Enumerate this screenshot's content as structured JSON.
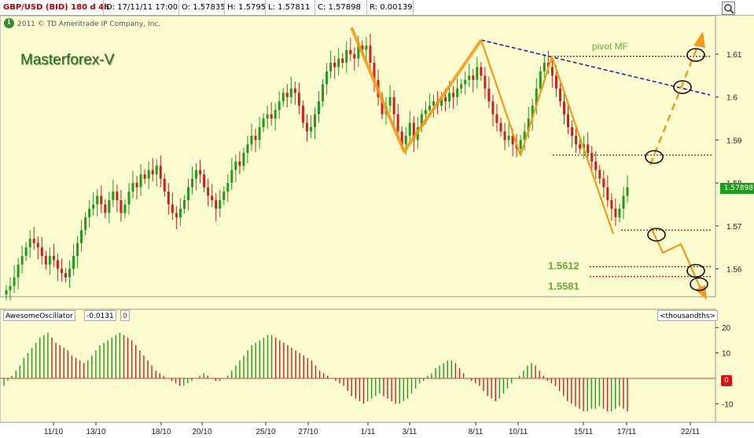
{
  "header": {
    "symbol": "GBP/USD (BID) 180 d 4h",
    "date": "D: 17/11/11 17:00",
    "open": "O: 1.57835",
    "high": "H: 1.5795",
    "low": "L: 1.57811",
    "close": "C: 1.57898",
    "range": "R: 0.00139"
  },
  "copyright": "2011 © TD Ameritrade IP Company, Inc.",
  "info_icon": "i",
  "watermark": "Masterforex-V",
  "annotations": {
    "pivot": "pivot MF",
    "level1": "1.5612",
    "level2": "1.5581"
  },
  "oscillator": {
    "name": "AwesomeOscillator",
    "value": "-0.0131",
    "zero_badge": "0",
    "unit": "<thousandths>",
    "zero_flag": "0",
    "y_ticks": [
      "20",
      "10",
      "-10"
    ]
  },
  "price_flag": "1.57898",
  "colors": {
    "up": "#1f9b1f",
    "down": "#cc2020",
    "projection": "#f39a1a",
    "trend": "#1a1a9a",
    "levels": "#c02020"
  },
  "chart_data": {
    "type": "candlestick",
    "x_tick_labels": [
      "11/10",
      "13/10",
      "18/10",
      "20/10",
      "25/10",
      "27/10",
      "1/11",
      "3/11",
      "8/11",
      "10/11",
      "15/11",
      "17/11",
      "22/11"
    ],
    "y_tick_labels": [
      "1.61",
      "1.6",
      "1.59",
      "1.58",
      "1.57",
      "1.56"
    ],
    "ylim": [
      1.5535,
      1.6175
    ],
    "close_path": [
      1.555,
      1.556,
      1.558,
      1.561,
      1.563,
      1.565,
      1.567,
      1.566,
      1.565,
      1.563,
      1.561,
      1.563,
      1.562,
      1.56,
      1.559,
      1.558,
      1.56,
      1.563,
      1.566,
      1.569,
      1.572,
      1.574,
      1.575,
      1.577,
      1.575,
      1.573,
      1.576,
      1.578,
      1.576,
      1.573,
      1.575,
      1.578,
      1.58,
      1.579,
      1.582,
      1.581,
      1.583,
      1.582,
      1.584,
      1.581,
      1.578,
      1.575,
      1.573,
      1.572,
      1.574,
      1.576,
      1.579,
      1.581,
      1.583,
      1.582,
      1.579,
      1.577,
      1.576,
      1.574,
      1.576,
      1.578,
      1.58,
      1.583,
      1.585,
      1.584,
      1.587,
      1.589,
      1.591,
      1.59,
      1.593,
      1.595,
      1.596,
      1.595,
      1.597,
      1.599,
      1.601,
      1.6,
      1.602,
      1.601,
      1.598,
      1.594,
      1.592,
      1.593,
      1.596,
      1.599,
      1.603,
      1.606,
      1.608,
      1.607,
      1.609,
      1.608,
      1.611,
      1.61,
      1.609,
      1.612,
      1.611,
      1.612,
      1.608,
      1.604,
      1.6,
      1.596,
      1.598,
      1.6,
      1.596,
      1.592,
      1.589,
      1.591,
      1.594,
      1.59,
      1.593,
      1.596,
      1.597,
      1.598,
      1.599,
      1.598,
      1.6,
      1.599,
      1.601,
      1.6,
      1.602,
      1.603,
      1.604,
      1.605,
      1.604,
      1.607,
      1.605,
      1.602,
      1.599,
      1.596,
      1.594,
      1.592,
      1.59,
      1.591,
      1.589,
      1.588,
      1.59,
      1.592,
      1.595,
      1.598,
      1.602,
      1.606,
      1.608,
      1.607,
      1.605,
      1.602,
      1.599,
      1.596,
      1.593,
      1.591,
      1.589,
      1.588,
      1.589,
      1.587,
      1.585,
      1.583,
      1.581,
      1.579,
      1.576,
      1.574,
      1.572,
      1.574,
      1.577,
      1.579
    ],
    "oscillator_values": [
      -3,
      -1,
      1,
      3,
      5,
      8,
      10,
      12,
      14,
      16,
      17,
      18,
      16,
      14,
      13,
      12,
      11,
      9,
      8,
      7,
      6,
      7,
      9,
      11,
      13,
      14,
      15,
      16,
      17,
      18,
      17,
      16,
      15,
      13,
      11,
      9,
      7,
      5,
      3,
      2,
      1,
      0,
      -1,
      -2,
      -3,
      -3,
      -2,
      -1,
      0,
      1,
      2,
      1,
      0,
      -1,
      -1,
      0,
      1,
      3,
      5,
      7,
      9,
      11,
      13,
      14,
      15,
      16,
      17,
      17,
      16,
      15,
      14,
      13,
      12,
      11,
      10,
      9,
      8,
      7,
      5,
      3,
      2,
      1,
      0,
      -1,
      -2,
      -3,
      -5,
      -7,
      -8,
      -9,
      -10,
      -9,
      -8,
      -7,
      -6,
      -7,
      -8,
      -9,
      -10,
      -10,
      -9,
      -8,
      -6,
      -4,
      -2,
      -1,
      1,
      2,
      4,
      5,
      6,
      7,
      7,
      6,
      4,
      2,
      0,
      -1,
      -2,
      -3,
      -5,
      -7,
      -8,
      -9,
      -8,
      -6,
      -4,
      -2,
      0,
      1,
      3,
      5,
      6,
      5,
      3,
      1,
      -1,
      -2,
      -3,
      -5,
      -7,
      -9,
      -10,
      -11,
      -12,
      -13,
      -13,
      -12,
      -12,
      -11,
      -12,
      -13,
      -13,
      -12,
      -11,
      -12,
      -13
    ],
    "oscillator_ylim": [
      -13,
      21
    ],
    "levels": [
      1.6095,
      1.5865,
      1.569,
      1.5605,
      1.5582
    ]
  }
}
